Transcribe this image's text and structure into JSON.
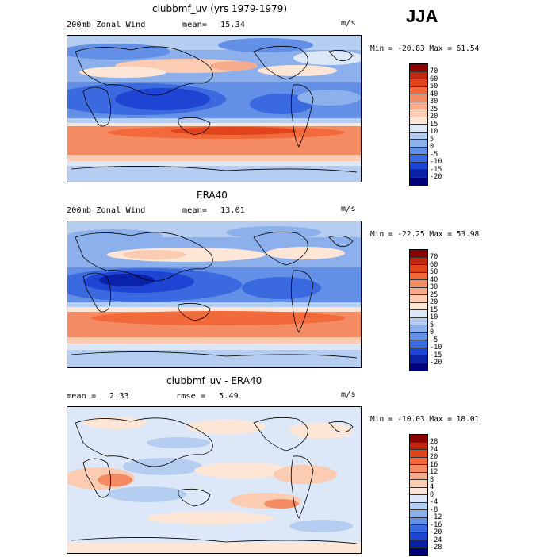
{
  "season": "JJA",
  "panels": [
    {
      "title": "clubbmf_uv (yrs 1979-1979)",
      "left_label": "200mb Zonal Wind",
      "stat1_label": "mean=",
      "stat1_value": "15.34",
      "stat2_label": "",
      "stat2_value": "",
      "units": "m/s",
      "min_max": "Min = -20.83 Max =  61.54",
      "colorbar": {
        "labels": [
          "70",
          "60",
          "50",
          "40",
          "30",
          "25",
          "20",
          "15",
          "10",
          "5",
          "0",
          "-5",
          "-10",
          "-15",
          "-20"
        ],
        "colors": [
          "#8b0000",
          "#c0260f",
          "#e0441a",
          "#f26a3b",
          "#f58b63",
          "#f8ab8c",
          "#fbcbb2",
          "#fde6d6",
          "#dce8f7",
          "#b4cdf1",
          "#8cb0eb",
          "#6390e6",
          "#3b69df",
          "#1d44d2",
          "#0a22a8",
          "#00007a"
        ]
      }
    },
    {
      "title": "ERA40",
      "left_label": "200mb Zonal Wind",
      "stat1_label": "mean=",
      "stat1_value": "13.01",
      "stat2_label": "",
      "stat2_value": "",
      "units": "m/s",
      "min_max": "Min = -22.25 Max =  53.98",
      "colorbar": {
        "labels": [
          "70",
          "60",
          "50",
          "40",
          "30",
          "25",
          "20",
          "15",
          "10",
          "5",
          "0",
          "-5",
          "-10",
          "-15",
          "-20"
        ],
        "colors": [
          "#8b0000",
          "#c0260f",
          "#e0441a",
          "#f26a3b",
          "#f58b63",
          "#f8ab8c",
          "#fbcbb2",
          "#fde6d6",
          "#dce8f7",
          "#b4cdf1",
          "#8cb0eb",
          "#6390e6",
          "#3b69df",
          "#1d44d2",
          "#0a22a8",
          "#00007a"
        ]
      }
    },
    {
      "title": "clubbmf_uv - ERA40",
      "left_label": "",
      "stat1_label": "mean =",
      "stat1_value": "2.33",
      "stat2_label": "rmse =",
      "stat2_value": "5.49",
      "units": "m/s",
      "min_max": "Min = -10.03 Max =  18.01",
      "colorbar": {
        "labels": [
          "28",
          "24",
          "20",
          "16",
          "12",
          "8",
          "4",
          "0",
          "-4",
          "-8",
          "-12",
          "-16",
          "-20",
          "-24",
          "-28"
        ],
        "colors": [
          "#8b0000",
          "#c0260f",
          "#e0441a",
          "#f26a3b",
          "#f58b63",
          "#f8ab8c",
          "#fbcbb2",
          "#fde6d6",
          "#dce8f7",
          "#b4cdf1",
          "#8cb0eb",
          "#6390e6",
          "#3b69df",
          "#1d44d2",
          "#0a22a8",
          "#00007a"
        ]
      }
    }
  ]
}
